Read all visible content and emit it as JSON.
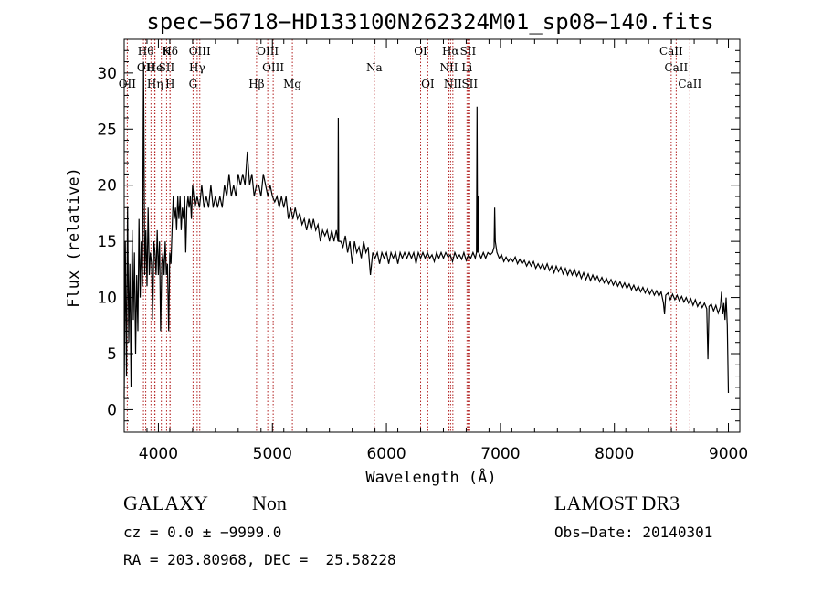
{
  "chart_data": {
    "type": "line",
    "title": "spec−56718−HD133100N262324M01_sp08−140.fits",
    "xlabel": "Wavelength (Å)",
    "ylabel": "Flux (relative)",
    "xlim": [
      3700,
      9100
    ],
    "ylim": [
      -2,
      33
    ],
    "xticks": [
      4000,
      5000,
      6000,
      7000,
      8000,
      9000
    ],
    "yticks": [
      0,
      5,
      10,
      15,
      20,
      25,
      30
    ],
    "line_color": "#000000",
    "marker_color": "#b22222",
    "spectrum": [
      [
        3700,
        1
      ],
      [
        3710,
        15
      ],
      [
        3720,
        3
      ],
      [
        3730,
        18
      ],
      [
        3740,
        6
      ],
      [
        3750,
        13
      ],
      [
        3760,
        2
      ],
      [
        3770,
        16
      ],
      [
        3780,
        8
      ],
      [
        3790,
        14
      ],
      [
        3800,
        5
      ],
      [
        3810,
        12
      ],
      [
        3820,
        7
      ],
      [
        3830,
        17
      ],
      [
        3840,
        10
      ],
      [
        3850,
        15
      ],
      [
        3860,
        11
      ],
      [
        3870,
        31
      ],
      [
        3880,
        12
      ],
      [
        3890,
        16
      ],
      [
        3900,
        11
      ],
      [
        3910,
        18
      ],
      [
        3920,
        12
      ],
      [
        3930,
        14
      ],
      [
        3940,
        13
      ],
      [
        3950,
        8
      ],
      [
        3960,
        15
      ],
      [
        3970,
        14
      ],
      [
        3980,
        12
      ],
      [
        3990,
        16
      ],
      [
        4000,
        12
      ],
      [
        4010,
        15
      ],
      [
        4020,
        7
      ],
      [
        4030,
        13
      ],
      [
        4040,
        14
      ],
      [
        4050,
        12
      ],
      [
        4060,
        15
      ],
      [
        4070,
        12
      ],
      [
        4080,
        13
      ],
      [
        4090,
        7
      ],
      [
        4100,
        14
      ],
      [
        4110,
        13
      ],
      [
        4120,
        16
      ],
      [
        4130,
        19
      ],
      [
        4140,
        17
      ],
      [
        4150,
        18
      ],
      [
        4160,
        16
      ],
      [
        4170,
        19
      ],
      [
        4180,
        17
      ],
      [
        4190,
        19
      ],
      [
        4200,
        16
      ],
      [
        4210,
        18
      ],
      [
        4220,
        17
      ],
      [
        4230,
        19
      ],
      [
        4240,
        14
      ],
      [
        4250,
        18
      ],
      [
        4260,
        19
      ],
      [
        4270,
        18
      ],
      [
        4280,
        19
      ],
      [
        4290,
        17
      ],
      [
        4300,
        20
      ],
      [
        4320,
        18
      ],
      [
        4340,
        19
      ],
      [
        4360,
        18
      ],
      [
        4380,
        20
      ],
      [
        4400,
        18
      ],
      [
        4420,
        19
      ],
      [
        4440,
        18
      ],
      [
        4460,
        20
      ],
      [
        4480,
        18
      ],
      [
        4500,
        19
      ],
      [
        4520,
        18
      ],
      [
        4540,
        19
      ],
      [
        4560,
        18
      ],
      [
        4580,
        20
      ],
      [
        4600,
        19
      ],
      [
        4620,
        21
      ],
      [
        4640,
        19
      ],
      [
        4660,
        20
      ],
      [
        4680,
        19
      ],
      [
        4700,
        21
      ],
      [
        4720,
        20
      ],
      [
        4740,
        21
      ],
      [
        4760,
        20
      ],
      [
        4780,
        23
      ],
      [
        4800,
        20
      ],
      [
        4820,
        21
      ],
      [
        4840,
        19
      ],
      [
        4860,
        20
      ],
      [
        4880,
        20
      ],
      [
        4900,
        19
      ],
      [
        4920,
        21
      ],
      [
        4940,
        20
      ],
      [
        4960,
        19
      ],
      [
        4980,
        20
      ],
      [
        5000,
        19
      ],
      [
        5020,
        18.5
      ],
      [
        5040,
        19
      ],
      [
        5060,
        18
      ],
      [
        5080,
        19
      ],
      [
        5100,
        18
      ],
      [
        5120,
        19
      ],
      [
        5140,
        17
      ],
      [
        5160,
        18
      ],
      [
        5180,
        17
      ],
      [
        5200,
        18
      ],
      [
        5220,
        17
      ],
      [
        5240,
        17.5
      ],
      [
        5260,
        16.5
      ],
      [
        5280,
        17
      ],
      [
        5300,
        16
      ],
      [
        5320,
        17
      ],
      [
        5340,
        16
      ],
      [
        5360,
        17
      ],
      [
        5380,
        16
      ],
      [
        5400,
        16.5
      ],
      [
        5420,
        15
      ],
      [
        5440,
        16
      ],
      [
        5460,
        15.5
      ],
      [
        5480,
        16
      ],
      [
        5500,
        15
      ],
      [
        5520,
        16
      ],
      [
        5540,
        15
      ],
      [
        5560,
        16
      ],
      [
        5575,
        15
      ],
      [
        5578,
        26
      ],
      [
        5582,
        15
      ],
      [
        5600,
        15
      ],
      [
        5620,
        14.5
      ],
      [
        5640,
        15.5
      ],
      [
        5660,
        14
      ],
      [
        5680,
        15
      ],
      [
        5700,
        13
      ],
      [
        5720,
        15
      ],
      [
        5740,
        14
      ],
      [
        5760,
        14.5
      ],
      [
        5780,
        13.5
      ],
      [
        5800,
        15
      ],
      [
        5820,
        14
      ],
      [
        5840,
        14.5
      ],
      [
        5860,
        12
      ],
      [
        5880,
        14
      ],
      [
        5900,
        13.5
      ],
      [
        5920,
        14
      ],
      [
        5940,
        13
      ],
      [
        5960,
        14
      ],
      [
        5980,
        13.5
      ],
      [
        6000,
        14
      ],
      [
        6020,
        13
      ],
      [
        6040,
        14
      ],
      [
        6060,
        13.5
      ],
      [
        6080,
        14
      ],
      [
        6100,
        13
      ],
      [
        6120,
        14
      ],
      [
        6140,
        13.5
      ],
      [
        6160,
        14
      ],
      [
        6180,
        13.5
      ],
      [
        6200,
        14
      ],
      [
        6220,
        13.5
      ],
      [
        6240,
        14
      ],
      [
        6260,
        13
      ],
      [
        6280,
        14
      ],
      [
        6300,
        13.5
      ],
      [
        6320,
        14
      ],
      [
        6340,
        13.5
      ],
      [
        6360,
        14
      ],
      [
        6380,
        13.5
      ],
      [
        6400,
        13.8
      ],
      [
        6420,
        13.2
      ],
      [
        6440,
        14
      ],
      [
        6460,
        13.5
      ],
      [
        6480,
        14
      ],
      [
        6500,
        13.5
      ],
      [
        6520,
        14
      ],
      [
        6540,
        13.6
      ],
      [
        6560,
        13.8
      ],
      [
        6580,
        13.2
      ],
      [
        6600,
        14
      ],
      [
        6620,
        13.5
      ],
      [
        6640,
        13.8
      ],
      [
        6660,
        13.4
      ],
      [
        6680,
        14
      ],
      [
        6700,
        13.3
      ],
      [
        6720,
        13.8
      ],
      [
        6740,
        13.5
      ],
      [
        6760,
        14
      ],
      [
        6780,
        13.5
      ],
      [
        6790,
        14
      ],
      [
        6795,
        27
      ],
      [
        6800,
        14
      ],
      [
        6805,
        19
      ],
      [
        6810,
        14
      ],
      [
        6830,
        13.5
      ],
      [
        6850,
        14
      ],
      [
        6870,
        13.5
      ],
      [
        6890,
        14
      ],
      [
        6910,
        13.8
      ],
      [
        6930,
        14
      ],
      [
        6945,
        14.5
      ],
      [
        6950,
        18
      ],
      [
        6955,
        15
      ],
      [
        6970,
        14
      ],
      [
        6990,
        13.5
      ],
      [
        7010,
        13.8
      ],
      [
        7030,
        13.2
      ],
      [
        7050,
        13.6
      ],
      [
        7070,
        13.2
      ],
      [
        7090,
        13.5
      ],
      [
        7110,
        13.2
      ],
      [
        7130,
        13.6
      ],
      [
        7150,
        13
      ],
      [
        7170,
        13.4
      ],
      [
        7190,
        13
      ],
      [
        7210,
        13.3
      ],
      [
        7230,
        12.8
      ],
      [
        7250,
        13.2
      ],
      [
        7270,
        12.8
      ],
      [
        7290,
        13.2
      ],
      [
        7310,
        12.6
      ],
      [
        7330,
        13
      ],
      [
        7350,
        12.6
      ],
      [
        7370,
        13
      ],
      [
        7390,
        12.5
      ],
      [
        7410,
        13
      ],
      [
        7430,
        12.4
      ],
      [
        7450,
        12.8
      ],
      [
        7470,
        12.2
      ],
      [
        7490,
        12.8
      ],
      [
        7510,
        12.3
      ],
      [
        7530,
        12.7
      ],
      [
        7550,
        12.1
      ],
      [
        7570,
        12.6
      ],
      [
        7590,
        12
      ],
      [
        7610,
        12.5
      ],
      [
        7630,
        12
      ],
      [
        7650,
        12.5
      ],
      [
        7670,
        11.9
      ],
      [
        7690,
        12.3
      ],
      [
        7710,
        11.7
      ],
      [
        7730,
        12.2
      ],
      [
        7750,
        11.6
      ],
      [
        7770,
        12.1
      ],
      [
        7790,
        11.5
      ],
      [
        7810,
        12
      ],
      [
        7830,
        11.5
      ],
      [
        7850,
        11.9
      ],
      [
        7870,
        11.4
      ],
      [
        7890,
        11.8
      ],
      [
        7910,
        11.3
      ],
      [
        7930,
        11.7
      ],
      [
        7950,
        11.2
      ],
      [
        7970,
        11.6
      ],
      [
        7990,
        11.1
      ],
      [
        8010,
        11.5
      ],
      [
        8030,
        11
      ],
      [
        8050,
        11.4
      ],
      [
        8070,
        10.9
      ],
      [
        8090,
        11.3
      ],
      [
        8110,
        10.8
      ],
      [
        8130,
        11.2
      ],
      [
        8150,
        10.7
      ],
      [
        8170,
        11.1
      ],
      [
        8190,
        10.6
      ],
      [
        8210,
        11
      ],
      [
        8230,
        10.5
      ],
      [
        8250,
        10.9
      ],
      [
        8270,
        10.4
      ],
      [
        8290,
        10.8
      ],
      [
        8310,
        10.3
      ],
      [
        8330,
        10.7
      ],
      [
        8350,
        10.2
      ],
      [
        8370,
        10.6
      ],
      [
        8390,
        10.1
      ],
      [
        8410,
        10.5
      ],
      [
        8430,
        9.5
      ],
      [
        8440,
        8.5
      ],
      [
        8450,
        10.2
      ],
      [
        8470,
        10.4
      ],
      [
        8490,
        9.8
      ],
      [
        8510,
        10.3
      ],
      [
        8530,
        9.8
      ],
      [
        8550,
        10.2
      ],
      [
        8570,
        9.7
      ],
      [
        8590,
        10.1
      ],
      [
        8610,
        9.6
      ],
      [
        8630,
        10
      ],
      [
        8650,
        9.5
      ],
      [
        8670,
        9.9
      ],
      [
        8690,
        9.3
      ],
      [
        8710,
        9.8
      ],
      [
        8730,
        9.2
      ],
      [
        8750,
        9.6
      ],
      [
        8770,
        9.1
      ],
      [
        8790,
        9.5
      ],
      [
        8810,
        9
      ],
      [
        8820,
        4.5
      ],
      [
        8830,
        9.2
      ],
      [
        8850,
        9.4
      ],
      [
        8870,
        8.8
      ],
      [
        8890,
        9.3
      ],
      [
        8910,
        8.6
      ],
      [
        8930,
        9.2
      ],
      [
        8940,
        10.5
      ],
      [
        8950,
        8.5
      ],
      [
        8960,
        9.5
      ],
      [
        8970,
        8
      ],
      [
        8980,
        10
      ],
      [
        8990,
        7.5
      ],
      [
        9000,
        1.5
      ]
    ],
    "lines": [
      {
        "wl": 3727,
        "labels": [
          "OII"
        ],
        "rows": [
          2
        ]
      },
      {
        "wl": 3869,
        "labels": [],
        "rows": []
      },
      {
        "wl": 3889,
        "labels": [
          "Hθ",
          "OII"
        ],
        "rows": [
          0,
          1
        ]
      },
      {
        "wl": 3935,
        "labels": [],
        "rows": []
      },
      {
        "wl": 3968,
        "labels": [
          "He"
        ],
        "rows": [
          1
        ]
      },
      {
        "wl": 3970,
        "labels": [
          "Hη"
        ],
        "rows": [
          2
        ]
      },
      {
        "wl": 4026,
        "labels": [],
        "rows": []
      },
      {
        "wl": 4072,
        "labels": [
          "K",
          "SII"
        ],
        "rows": [
          0,
          1
        ]
      },
      {
        "wl": 4102,
        "labels": [
          "H"
        ],
        "rows": [
          2
        ]
      },
      {
        "wl": 4102,
        "labels": [
          "Hδ"
        ],
        "rows": [
          0
        ]
      },
      {
        "wl": 4340,
        "labels": [
          "Hγ"
        ],
        "rows": [
          1
        ]
      },
      {
        "wl": 4363,
        "labels": [
          "OIII"
        ],
        "rows": [
          0
        ]
      },
      {
        "wl": 4304,
        "labels": [
          "G"
        ],
        "rows": [
          2
        ]
      },
      {
        "wl": 4861,
        "labels": [
          "Hβ"
        ],
        "rows": [
          2
        ]
      },
      {
        "wl": 4959,
        "labels": [
          "OIII"
        ],
        "rows": [
          0
        ]
      },
      {
        "wl": 5007,
        "labels": [
          "OIII"
        ],
        "rows": [
          1
        ]
      },
      {
        "wl": 5175,
        "labels": [
          "Mg"
        ],
        "rows": [
          2
        ]
      },
      {
        "wl": 5894,
        "labels": [
          "Na"
        ],
        "rows": [
          1
        ]
      },
      {
        "wl": 6300,
        "labels": [
          "OI"
        ],
        "rows": [
          0
        ]
      },
      {
        "wl": 6363,
        "labels": [
          "OI"
        ],
        "rows": [
          2
        ]
      },
      {
        "wl": 6548,
        "labels": [
          "NII"
        ],
        "rows": [
          1
        ]
      },
      {
        "wl": 6563,
        "labels": [
          "Hα"
        ],
        "rows": [
          0
        ]
      },
      {
        "wl": 6583,
        "labels": [
          "NII"
        ],
        "rows": [
          2
        ]
      },
      {
        "wl": 6707,
        "labels": [
          "Li"
        ],
        "rows": [
          1
        ]
      },
      {
        "wl": 6716,
        "labels": [
          "SII"
        ],
        "rows": [
          0
        ]
      },
      {
        "wl": 6731,
        "labels": [
          "SII"
        ],
        "rows": [
          2
        ]
      },
      {
        "wl": 8498,
        "labels": [
          "CaII"
        ],
        "rows": [
          0
        ]
      },
      {
        "wl": 8542,
        "labels": [
          "CaII"
        ],
        "rows": [
          1
        ]
      },
      {
        "wl": 8662,
        "labels": [
          "CaII"
        ],
        "rows": [
          2
        ]
      }
    ]
  },
  "info": {
    "class_label": "GALAXY",
    "subclass_label": "Non",
    "survey_label": "LAMOST DR3",
    "cz_text": "cz = 0.0 ± −9999.0",
    "obs_date_text": "Obs−Date: 20140301",
    "radec_text": "RA = 203.80968, DEC =  25.58228"
  }
}
